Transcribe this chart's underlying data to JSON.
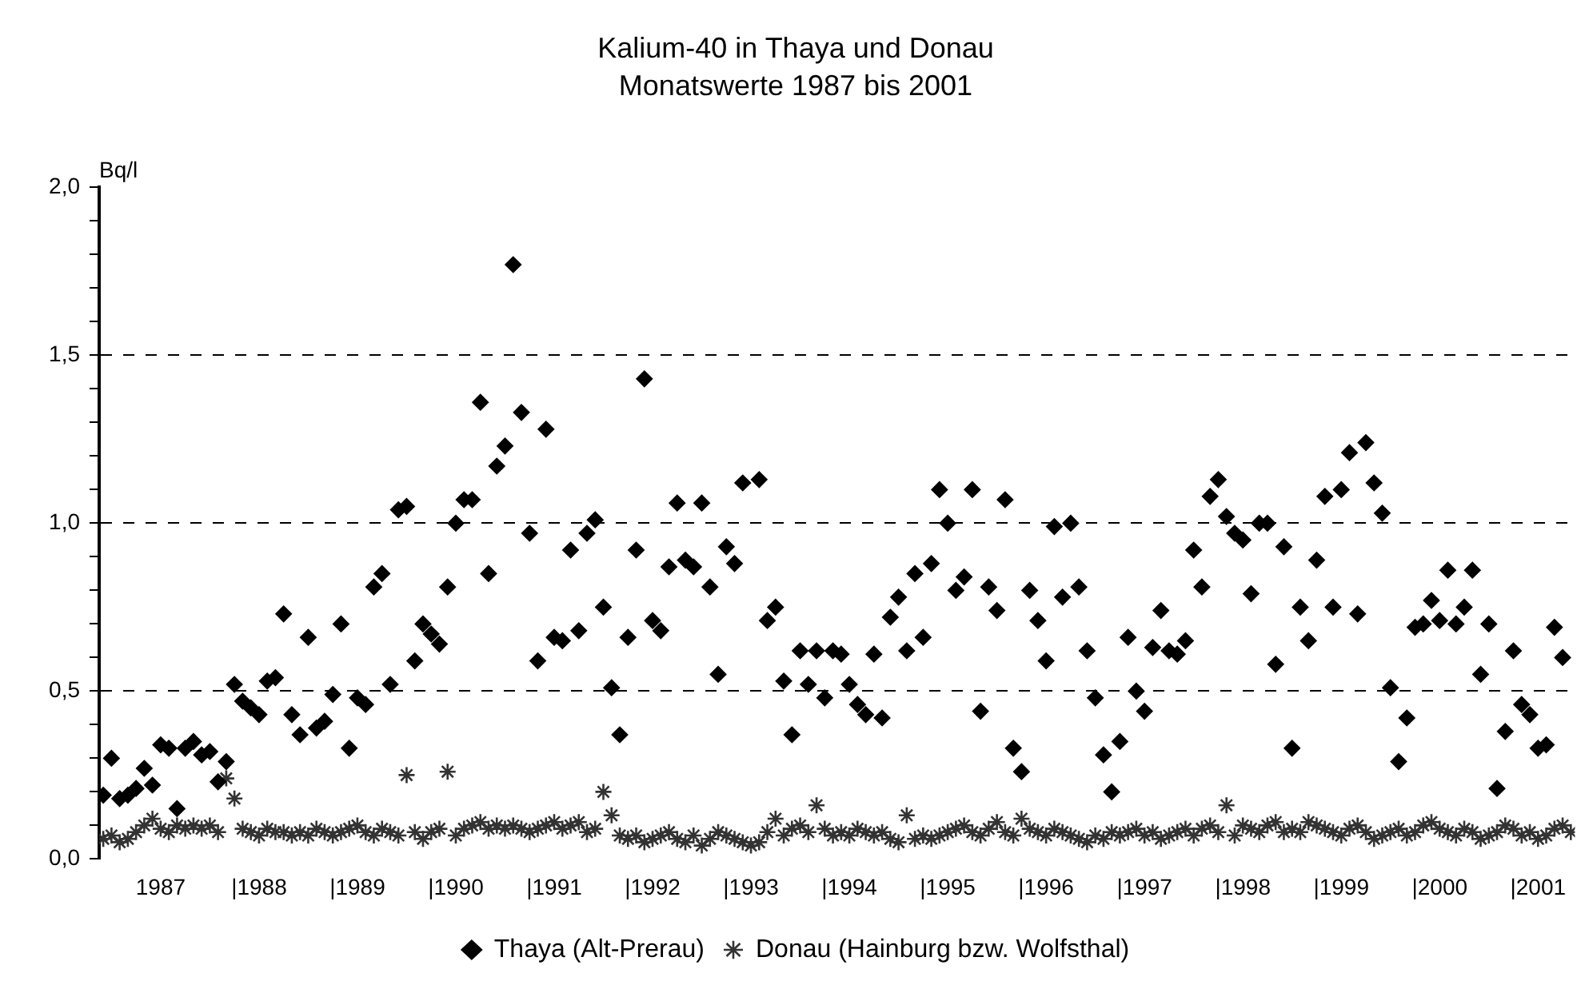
{
  "chart_data": {
    "type": "scatter",
    "title": "Kalium-40 in Thaya und Donau",
    "subtitle": "Monatswerte 1987 bis 2001",
    "ylabel": "Bq/l",
    "x": [
      "1987-01",
      "1987-02",
      "1987-03",
      "1987-04",
      "1987-05",
      "1987-06",
      "1987-07",
      "1987-08",
      "1987-09",
      "1987-10",
      "1987-11",
      "1987-12",
      "1988-01",
      "1988-02",
      "1988-03",
      "1988-04",
      "1988-05",
      "1988-06",
      "1988-07",
      "1988-08",
      "1988-09",
      "1988-10",
      "1988-11",
      "1988-12",
      "1989-01",
      "1989-02",
      "1989-03",
      "1989-04",
      "1989-05",
      "1989-06",
      "1989-07",
      "1989-08",
      "1989-09",
      "1989-10",
      "1989-11",
      "1989-12",
      "1990-01",
      "1990-02",
      "1990-03",
      "1990-04",
      "1990-05",
      "1990-06",
      "1990-07",
      "1990-08",
      "1990-09",
      "1990-10",
      "1990-11",
      "1990-12",
      "1991-01",
      "1991-02",
      "1991-03",
      "1991-04",
      "1991-05",
      "1991-06",
      "1991-07",
      "1991-08",
      "1991-09",
      "1991-10",
      "1991-11",
      "1991-12",
      "1992-01",
      "1992-02",
      "1992-03",
      "1992-04",
      "1992-05",
      "1992-06",
      "1992-07",
      "1992-08",
      "1992-09",
      "1992-10",
      "1992-11",
      "1992-12",
      "1993-01",
      "1993-02",
      "1993-03",
      "1993-04",
      "1993-05",
      "1993-06",
      "1993-07",
      "1993-08",
      "1993-09",
      "1993-10",
      "1993-11",
      "1993-12",
      "1994-01",
      "1994-02",
      "1994-03",
      "1994-04",
      "1994-05",
      "1994-06",
      "1994-07",
      "1994-08",
      "1994-09",
      "1994-10",
      "1994-11",
      "1994-12",
      "1995-01",
      "1995-02",
      "1995-03",
      "1995-04",
      "1995-05",
      "1995-06",
      "1995-07",
      "1995-08",
      "1995-09",
      "1995-10",
      "1995-11",
      "1995-12",
      "1996-01",
      "1996-02",
      "1996-03",
      "1996-04",
      "1996-05",
      "1996-06",
      "1996-07",
      "1996-08",
      "1996-09",
      "1996-10",
      "1996-11",
      "1996-12",
      "1997-01",
      "1997-02",
      "1997-03",
      "1997-04",
      "1997-05",
      "1997-06",
      "1997-07",
      "1997-08",
      "1997-09",
      "1997-10",
      "1997-11",
      "1997-12",
      "1998-01",
      "1998-02",
      "1998-03",
      "1998-04",
      "1998-05",
      "1998-06",
      "1998-07",
      "1998-08",
      "1998-09",
      "1998-10",
      "1998-11",
      "1998-12",
      "1999-01",
      "1999-02",
      "1999-03",
      "1999-04",
      "1999-05",
      "1999-06",
      "1999-07",
      "1999-08",
      "1999-09",
      "1999-10",
      "1999-11",
      "1999-12",
      "2000-01",
      "2000-02",
      "2000-03",
      "2000-04",
      "2000-05",
      "2000-06",
      "2000-07",
      "2000-08",
      "2000-09",
      "2000-10",
      "2000-11",
      "2000-12",
      "2001-01",
      "2001-02",
      "2001-03",
      "2001-04",
      "2001-05",
      "2001-06",
      "2001-07",
      "2001-08",
      "2001-09",
      "2001-10",
      "2001-11",
      "2001-12"
    ],
    "series": [
      {
        "name": "Thaya (Alt-Prerau)",
        "color": "#000000",
        "marker": "diamond",
        "values": [
          0.19,
          0.3,
          0.18,
          0.19,
          0.21,
          0.27,
          0.22,
          0.34,
          0.33,
          0.15,
          0.33,
          0.35,
          0.31,
          0.32,
          0.23,
          0.29,
          0.52,
          0.47,
          0.45,
          0.43,
          0.53,
          0.54,
          0.73,
          0.43,
          0.37,
          0.66,
          0.39,
          0.41,
          0.49,
          0.7,
          0.33,
          0.48,
          0.46,
          0.81,
          0.85,
          0.52,
          1.04,
          1.05,
          0.59,
          0.7,
          0.67,
          0.64,
          0.81,
          1.0,
          1.07,
          1.07,
          1.36,
          0.85,
          1.17,
          1.23,
          1.77,
          1.33,
          0.97,
          0.59,
          1.28,
          0.66,
          0.65,
          0.92,
          0.68,
          0.97,
          1.01,
          0.75,
          0.51,
          0.37,
          0.66,
          0.92,
          1.43,
          0.71,
          0.68,
          0.87,
          1.06,
          0.89,
          0.87,
          1.06,
          0.81,
          0.55,
          0.93,
          0.88,
          1.12,
          null,
          1.13,
          0.71,
          0.75,
          0.53,
          0.37,
          0.62,
          0.52,
          0.62,
          0.48,
          0.62,
          0.61,
          0.52,
          0.46,
          0.43,
          0.61,
          0.42,
          0.72,
          0.78,
          0.62,
          0.85,
          0.66,
          0.88,
          1.1,
          1.0,
          0.8,
          0.84,
          1.1,
          0.44,
          0.81,
          0.74,
          1.07,
          0.33,
          0.26,
          0.8,
          0.71,
          0.59,
          0.99,
          0.78,
          1.0,
          0.81,
          0.62,
          0.48,
          0.31,
          0.2,
          0.35,
          0.66,
          0.5,
          0.44,
          0.63,
          0.74,
          0.62,
          0.61,
          0.65,
          0.92,
          0.81,
          1.08,
          1.13,
          1.02,
          0.97,
          0.95,
          0.79,
          1.0,
          1.0,
          0.58,
          0.93,
          0.33,
          0.75,
          0.65,
          0.89,
          1.08,
          0.75,
          1.1,
          1.21,
          0.73,
          1.24,
          1.12,
          1.03,
          0.51,
          0.29,
          0.42,
          0.69,
          0.7,
          0.77,
          0.71,
          0.86,
          0.7,
          0.75,
          0.86,
          0.55,
          0.7,
          0.21,
          0.38,
          0.62,
          0.46,
          0.43,
          0.33,
          0.34,
          0.69,
          0.6,
          null
        ]
      },
      {
        "name": "Donau (Hainburg bzw. Wolfsthal)",
        "color": "#333333",
        "marker": "cross",
        "values": [
          0.06,
          0.07,
          0.05,
          0.06,
          0.08,
          0.1,
          0.12,
          0.09,
          0.08,
          0.1,
          0.09,
          0.1,
          0.09,
          0.1,
          0.08,
          0.24,
          0.18,
          0.09,
          0.08,
          0.07,
          0.09,
          0.08,
          0.08,
          0.07,
          0.08,
          0.07,
          0.09,
          0.08,
          0.07,
          0.08,
          0.09,
          0.1,
          0.08,
          0.07,
          0.09,
          0.08,
          0.07,
          0.25,
          0.08,
          0.06,
          0.08,
          0.09,
          0.26,
          0.07,
          0.09,
          0.1,
          0.11,
          0.09,
          0.1,
          0.09,
          0.1,
          0.09,
          0.08,
          0.09,
          0.1,
          0.11,
          0.09,
          0.1,
          0.11,
          0.08,
          0.09,
          0.2,
          0.13,
          0.07,
          0.06,
          0.07,
          0.05,
          0.06,
          0.07,
          0.08,
          0.06,
          0.05,
          0.07,
          0.04,
          0.06,
          0.08,
          0.07,
          0.06,
          0.05,
          0.04,
          0.05,
          0.08,
          0.12,
          0.07,
          0.09,
          0.1,
          0.08,
          0.16,
          0.09,
          0.07,
          0.08,
          0.07,
          0.09,
          0.08,
          0.07,
          0.08,
          0.06,
          0.05,
          0.13,
          0.06,
          0.07,
          0.06,
          0.07,
          0.08,
          0.09,
          0.1,
          0.08,
          0.07,
          0.09,
          0.11,
          0.08,
          0.07,
          0.12,
          0.09,
          0.08,
          0.07,
          0.09,
          0.08,
          0.07,
          0.06,
          0.05,
          0.07,
          0.06,
          0.08,
          0.07,
          0.08,
          0.09,
          0.07,
          0.08,
          0.06,
          0.07,
          0.08,
          0.09,
          0.07,
          0.09,
          0.1,
          0.08,
          0.16,
          0.07,
          0.1,
          0.09,
          0.08,
          0.1,
          0.11,
          0.08,
          0.09,
          0.08,
          0.11,
          0.1,
          0.09,
          0.08,
          0.07,
          0.09,
          0.1,
          0.08,
          0.06,
          0.07,
          0.08,
          0.09,
          0.07,
          0.08,
          0.1,
          0.11,
          0.09,
          0.08,
          0.07,
          0.09,
          0.08,
          0.06,
          0.07,
          0.08,
          0.1,
          0.09,
          0.07,
          0.08,
          0.06,
          0.07,
          0.09,
          0.1,
          0.08
        ]
      }
    ],
    "xlim": [
      "1987",
      "2002"
    ],
    "xticks": [
      {
        "value": "1987-08",
        "label": "1987"
      },
      {
        "value": "1988-08",
        "label": "|1988"
      },
      {
        "value": "1989-08",
        "label": "|1989"
      },
      {
        "value": "1990-08",
        "label": "|1990"
      },
      {
        "value": "1991-08",
        "label": "|1991"
      },
      {
        "value": "1992-08",
        "label": "|1992"
      },
      {
        "value": "1993-08",
        "label": "|1993"
      },
      {
        "value": "1994-08",
        "label": "|1994"
      },
      {
        "value": "1995-08",
        "label": "|1995"
      },
      {
        "value": "1996-08",
        "label": "|1996"
      },
      {
        "value": "1997-08",
        "label": "|1997"
      },
      {
        "value": "1998-08",
        "label": "|1998"
      },
      {
        "value": "1999-08",
        "label": "|1999"
      },
      {
        "value": "2000-08",
        "label": "|2000"
      },
      {
        "value": "2001-08",
        "label": "|2001"
      }
    ],
    "ylim": [
      0,
      2
    ],
    "yticks": [
      {
        "value": 0,
        "label": "0,0"
      },
      {
        "value": 0.1,
        "label": null
      },
      {
        "value": 0.2,
        "label": null
      },
      {
        "value": 0.3,
        "label": null
      },
      {
        "value": 0.4,
        "label": null
      },
      {
        "value": 0.5,
        "label": "0,5"
      },
      {
        "value": 0.6,
        "label": null
      },
      {
        "value": 0.7,
        "label": null
      },
      {
        "value": 0.8,
        "label": null
      },
      {
        "value": 0.9,
        "label": null
      },
      {
        "value": 1,
        "label": "1,0"
      },
      {
        "value": 1.1,
        "label": null
      },
      {
        "value": 1.2,
        "label": null
      },
      {
        "value": 1.3,
        "label": null
      },
      {
        "value": 1.4,
        "label": null
      },
      {
        "value": 1.5,
        "label": "1,5"
      },
      {
        "value": 1.6,
        "label": null
      },
      {
        "value": 1.7,
        "label": null
      },
      {
        "value": 1.8,
        "label": null
      },
      {
        "value": 1.9,
        "label": null
      },
      {
        "value": 2,
        "label": "2,0"
      }
    ],
    "grid": "y",
    "legend": "bottom"
  }
}
